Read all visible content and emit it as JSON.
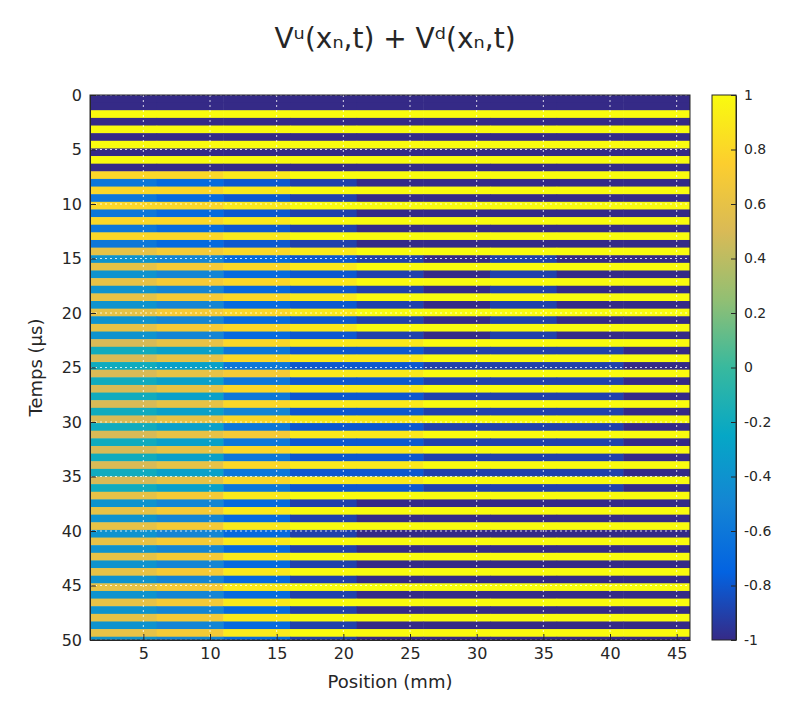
{
  "chart_data": {
    "type": "heatmap",
    "title": "Vᵘ(xₙ,t) + Vᵈ(xₙ,t)",
    "x_label": "Position (mm)",
    "y_label": "Temps (µs)",
    "xlim": [
      1,
      46
    ],
    "ylim": [
      0,
      50
    ],
    "xticks": [
      5,
      10,
      15,
      20,
      25,
      30,
      35,
      40,
      45
    ],
    "yticks": [
      0,
      5,
      10,
      15,
      20,
      25,
      30,
      35,
      40,
      45,
      50
    ],
    "grid": true,
    "x_bins": [
      1,
      6,
      11,
      16,
      21,
      26,
      31,
      36,
      41,
      46
    ],
    "y_bins": [
      0,
      0.7,
      1.4,
      2.1,
      2.8,
      3.5,
      4.2,
      4.9,
      5.6,
      6.3,
      7,
      7.7,
      8.4,
      9.1,
      9.8,
      10.5,
      11.2,
      11.9,
      12.6,
      13.3,
      14,
      14.7,
      15.4,
      16.1,
      16.8,
      17.5,
      18.2,
      18.9,
      19.6,
      20.3,
      21,
      21.7,
      22.4,
      23.1,
      23.8,
      24.5,
      25.2,
      25.9,
      26.6,
      27.3,
      28,
      28.7,
      29.4,
      30.1,
      30.8,
      31.5,
      32.2,
      32.9,
      33.6,
      34.3,
      35,
      35.7,
      36.4,
      37.1,
      37.8,
      38.5,
      39.2,
      39.9,
      40.6,
      41.3,
      42,
      42.7,
      43.4,
      44.1,
      44.8,
      45.5,
      46.2,
      46.9,
      47.6,
      48.3,
      49,
      49.7,
      50
    ],
    "cells": [
      [
        -1,
        -1,
        -1,
        -1,
        -1,
        -1,
        -1,
        -1,
        -1
      ],
      [
        -1,
        -1,
        -1,
        -1,
        -1,
        -1,
        -1,
        -1,
        -1
      ],
      [
        1,
        1,
        1,
        1,
        1,
        1,
        1,
        1,
        1
      ],
      [
        -1,
        -1,
        -1,
        -1,
        -1,
        -1,
        -1,
        -1,
        -1
      ],
      [
        1,
        1,
        1,
        1,
        1,
        1,
        1,
        1,
        1
      ],
      [
        -1,
        -1,
        -1,
        -1,
        -1,
        -1,
        -1,
        -1,
        -1
      ],
      [
        1,
        1,
        1,
        1,
        1,
        1,
        1,
        1,
        1
      ],
      [
        -1,
        -1,
        -1,
        -1,
        -1,
        -1,
        -1,
        -1,
        -1
      ],
      [
        1,
        1,
        1,
        1,
        1,
        1,
        1,
        1,
        1
      ],
      [
        -1,
        -1,
        -1,
        -1,
        -1,
        -1,
        -1,
        -1,
        -1
      ],
      [
        0.8,
        0.8,
        0.9,
        1,
        1,
        1,
        1,
        1,
        1
      ],
      [
        -0.6,
        -0.7,
        -0.8,
        -0.9,
        -1,
        -1,
        -1,
        -1,
        -1
      ],
      [
        0.8,
        0.8,
        0.9,
        1,
        1,
        1,
        1,
        1,
        1
      ],
      [
        -0.6,
        -0.7,
        -0.8,
        -0.9,
        -1,
        -1,
        -1,
        -1,
        -1
      ],
      [
        0.8,
        0.8,
        0.9,
        1,
        1,
        1,
        1,
        1,
        1
      ],
      [
        -0.6,
        -0.7,
        -0.8,
        -0.9,
        -1,
        -1,
        -1,
        -1,
        -1
      ],
      [
        0.8,
        0.8,
        0.9,
        1,
        1,
        1,
        1,
        1,
        1
      ],
      [
        -0.6,
        -0.7,
        -0.8,
        -0.9,
        -1,
        -1,
        -1,
        -1,
        -1
      ],
      [
        0.8,
        0.8,
        0.9,
        1,
        1,
        1,
        1,
        1,
        1
      ],
      [
        -0.6,
        -0.7,
        -0.8,
        -0.9,
        -1,
        -1,
        -1,
        -1,
        -1
      ],
      [
        0.6,
        0.7,
        0.8,
        0.9,
        1,
        1,
        1,
        1,
        1
      ],
      [
        -0.4,
        -0.5,
        -0.7,
        -0.8,
        -0.9,
        -1,
        -0.9,
        -1,
        -1
      ],
      [
        0.6,
        0.7,
        0.8,
        0.9,
        1,
        1,
        1,
        1,
        1
      ],
      [
        -0.4,
        -0.5,
        -0.7,
        -0.8,
        -0.9,
        -1,
        -0.9,
        -1,
        -1
      ],
      [
        0.6,
        0.7,
        0.8,
        0.9,
        1,
        1,
        1,
        1,
        1
      ],
      [
        -0.4,
        -0.5,
        -0.7,
        -0.8,
        -0.9,
        -1,
        -0.9,
        -1,
        -1
      ],
      [
        0.6,
        0.7,
        0.8,
        0.9,
        1,
        1,
        1,
        1,
        1
      ],
      [
        -0.4,
        -0.5,
        -0.7,
        -0.8,
        -0.9,
        -1,
        -0.9,
        -1,
        -1
      ],
      [
        0.6,
        0.7,
        0.8,
        0.9,
        1,
        1,
        1,
        1,
        1
      ],
      [
        -0.4,
        -0.5,
        -0.7,
        -0.8,
        -0.9,
        -1,
        -0.9,
        -1,
        -1
      ],
      [
        0.6,
        0.7,
        0.8,
        0.9,
        1,
        1,
        1,
        1,
        1
      ],
      [
        -0.4,
        -0.5,
        -0.7,
        -0.8,
        -0.9,
        -1,
        -0.9,
        -1,
        -1
      ],
      [
        0.5,
        0.6,
        0.8,
        0.9,
        0.9,
        1,
        1,
        1,
        1
      ],
      [
        -0.2,
        -0.3,
        -0.6,
        -0.8,
        -0.8,
        -0.9,
        -0.9,
        -0.9,
        -1
      ],
      [
        0.5,
        0.6,
        0.8,
        0.9,
        0.9,
        1,
        1,
        1,
        1
      ],
      [
        -0.2,
        -0.3,
        -0.6,
        -0.8,
        -0.8,
        -0.9,
        -0.9,
        -0.9,
        -1
      ],
      [
        0.5,
        0.6,
        0.7,
        0.9,
        0.9,
        1,
        1,
        1,
        1
      ],
      [
        -0.2,
        -0.3,
        -0.6,
        -0.8,
        -0.8,
        -0.9,
        -0.9,
        -0.9,
        -1
      ],
      [
        0.5,
        0.6,
        0.8,
        0.9,
        0.9,
        1,
        1,
        1,
        1
      ],
      [
        -0.2,
        -0.3,
        -0.6,
        -0.8,
        -0.8,
        -0.9,
        -0.9,
        -0.9,
        -1
      ],
      [
        0.5,
        0.6,
        0.8,
        0.9,
        0.9,
        1,
        1,
        1,
        1
      ],
      [
        -0.2,
        -0.3,
        -0.5,
        -0.8,
        -0.8,
        -0.9,
        -0.9,
        -0.9,
        -1
      ],
      [
        0.5,
        0.6,
        0.8,
        0.9,
        0.9,
        1,
        1,
        1,
        1
      ],
      [
        -0.2,
        -0.3,
        -0.6,
        -0.8,
        -0.8,
        -0.9,
        -0.9,
        -0.9,
        -1
      ],
      [
        0.5,
        0.6,
        0.7,
        0.9,
        0.9,
        1,
        1,
        1,
        1
      ],
      [
        -0.2,
        -0.3,
        -0.6,
        -0.8,
        -0.8,
        -0.9,
        -0.9,
        -0.9,
        -1
      ],
      [
        0.5,
        0.6,
        0.8,
        0.9,
        0.9,
        1,
        1,
        1,
        1
      ],
      [
        -0.2,
        -0.3,
        -0.6,
        -0.8,
        -0.8,
        -0.9,
        -0.9,
        -0.9,
        -1
      ],
      [
        0.5,
        0.6,
        0.8,
        0.9,
        0.9,
        1,
        1,
        1,
        1
      ],
      [
        -0.2,
        -0.3,
        -0.6,
        -0.8,
        -0.8,
        -0.9,
        -0.9,
        -0.9,
        -1
      ],
      [
        0.5,
        0.6,
        0.8,
        0.9,
        0.9,
        1,
        1,
        1,
        1
      ],
      [
        -0.2,
        -0.3,
        -0.6,
        -0.8,
        -0.8,
        -0.9,
        -0.9,
        -0.9,
        -1
      ],
      [
        0.6,
        0.7,
        0.9,
        1,
        1,
        1,
        1,
        1,
        1
      ],
      [
        -0.4,
        -0.5,
        -0.7,
        -0.9,
        -1,
        -1,
        -1,
        -1,
        -1
      ],
      [
        0.6,
        0.7,
        0.9,
        1,
        1,
        1,
        1,
        1,
        1
      ],
      [
        -0.4,
        -0.5,
        -0.7,
        -0.9,
        -1,
        -1,
        -1,
        -1,
        -1
      ],
      [
        0.6,
        0.7,
        0.9,
        1,
        1,
        1,
        1,
        1,
        1
      ],
      [
        -0.4,
        -0.5,
        -0.7,
        -0.9,
        -1,
        -1,
        -1,
        -1,
        -1
      ],
      [
        0.6,
        0.7,
        0.9,
        1,
        1,
        1,
        1,
        1,
        1
      ],
      [
        -0.4,
        -0.5,
        -0.7,
        -0.9,
        -1,
        -1,
        -1,
        -1,
        -1
      ],
      [
        0.6,
        0.7,
        0.9,
        1,
        1,
        1,
        1,
        1,
        1
      ],
      [
        -0.4,
        -0.5,
        -0.7,
        -0.9,
        -1,
        -1,
        -1,
        -1,
        -1
      ],
      [
        0.6,
        0.7,
        0.9,
        1,
        1,
        1,
        1,
        1,
        1
      ],
      [
        -0.4,
        -0.5,
        -0.7,
        -0.9,
        -1,
        -1,
        -1,
        -1,
        -1
      ],
      [
        0.6,
        0.7,
        0.9,
        1,
        1,
        1,
        1,
        1,
        1
      ],
      [
        -0.4,
        -0.5,
        -0.7,
        -0.9,
        -1,
        -1,
        -1,
        -1,
        -1
      ],
      [
        0.6,
        0.7,
        0.9,
        1,
        1,
        1,
        1,
        1,
        1
      ],
      [
        -0.4,
        -0.5,
        -0.7,
        -0.9,
        -1,
        -1,
        -1,
        -1,
        -1
      ],
      [
        0.6,
        0.7,
        0.9,
        1,
        1,
        1,
        1,
        1,
        1
      ],
      [
        -0.4,
        -0.5,
        -0.7,
        -0.9,
        -1,
        -1,
        -1,
        -1,
        -1
      ],
      [
        0.6,
        0.7,
        0.9,
        1,
        1,
        1,
        1,
        1,
        1
      ],
      [
        -0.4,
        -0.5,
        -0.7,
        -0.9,
        -1,
        -1,
        -1,
        -1,
        -1
      ]
    ],
    "colorbar": {
      "range": [
        -1,
        1
      ],
      "ticks": [
        -1,
        -0.8,
        -0.6,
        -0.4,
        -0.2,
        0,
        0.2,
        0.4,
        0.6,
        0.8,
        1
      ]
    }
  }
}
